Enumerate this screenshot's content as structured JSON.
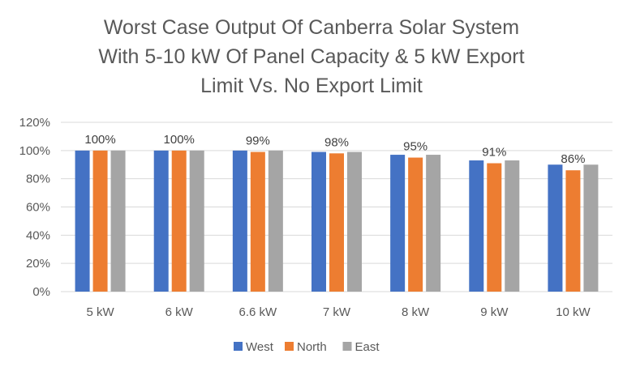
{
  "chart_data": {
    "type": "bar",
    "title_lines": [
      "Worst Case Output Of Canberra Solar System",
      "With 5-10 kW Of Panel Capacity & 5 kW Export",
      "Limit Vs. No Export Limit"
    ],
    "categories": [
      "5 kW",
      "6 kW",
      "6.6 kW",
      "7 kW",
      "8 kW",
      "9 kW",
      "10 kW"
    ],
    "series": [
      {
        "name": "West",
        "color": "#4472C4",
        "values": [
          100,
          100,
          100,
          99,
          97,
          93,
          90
        ]
      },
      {
        "name": "North",
        "color": "#ED7D31",
        "values": [
          100,
          100,
          99,
          98,
          95,
          91,
          86
        ]
      },
      {
        "name": "East",
        "color": "#A5A5A5",
        "values": [
          100,
          100,
          100,
          99,
          97,
          93,
          90
        ]
      }
    ],
    "data_labels": [
      "100%",
      "100%",
      "99%",
      "98%",
      "95%",
      "91%",
      "86%"
    ],
    "y_ticks": [
      "0%",
      "20%",
      "40%",
      "60%",
      "80%",
      "100%",
      "120%"
    ],
    "ylim": [
      0,
      120
    ],
    "grid": true,
    "legend": "bottom"
  }
}
